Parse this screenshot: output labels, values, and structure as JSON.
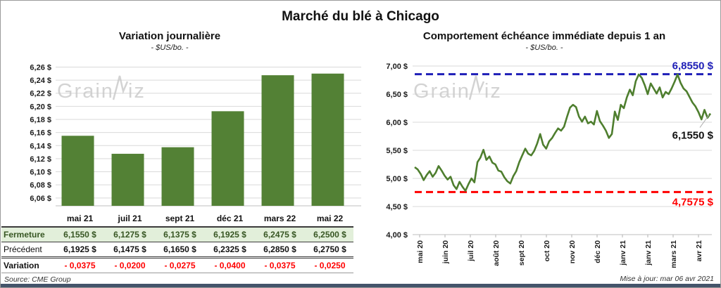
{
  "title": "Marché du blé à Chicago",
  "watermark": {
    "before": "Grain",
    "after": "iz"
  },
  "footer": {
    "source": "Source: CME Group",
    "updated": "Mise à jour: mar 06 avr 2021"
  },
  "table": {
    "columns": [
      "mai 21",
      "juil 21",
      "sept 21",
      "déc 21",
      "mars 22",
      "mai 22"
    ],
    "rows": [
      {
        "style": "fermeture",
        "label": "Fermeture",
        "values": [
          "6,1550 $",
          "6,1275 $",
          "6,1375 $",
          "6,1925 $",
          "6,2475 $",
          "6,2500 $"
        ]
      },
      {
        "style": "precedent",
        "label": "Précédent",
        "values": [
          "6,1925 $",
          "6,1475 $",
          "6,1650 $",
          "6,2325 $",
          "6,2850 $",
          "6,2750 $"
        ]
      },
      {
        "style": "variation",
        "label": "Variation",
        "values": [
          "- 0,0375",
          "- 0,0200",
          "- 0,0275",
          "- 0,0400",
          "- 0,0375",
          "- 0,0250"
        ]
      }
    ]
  },
  "chart_data": [
    {
      "type": "bar",
      "title": "Variation journalière",
      "subtitle": "- $US/bo. -",
      "categories": [
        "mai 21",
        "juil 21",
        "sept 21",
        "déc 21",
        "mars 22",
        "mai 22"
      ],
      "values": [
        6.155,
        6.1275,
        6.1375,
        6.1925,
        6.2475,
        6.25
      ],
      "yticks": [
        6.06,
        6.08,
        6.1,
        6.12,
        6.14,
        6.16,
        6.18,
        6.2,
        6.22,
        6.24,
        6.26
      ],
      "ytick_labels": [
        "6,06 $",
        "6,08 $",
        "6,10 $",
        "6,12 $",
        "6,14 $",
        "6,16 $",
        "6,18 $",
        "6,20 $",
        "6,22 $",
        "6,24 $",
        "6,26 $"
      ],
      "ylim": [
        6.048,
        6.268
      ],
      "bar_color": "#538135",
      "grid_color": "#d9d9d9",
      "legend": "none"
    },
    {
      "type": "line",
      "title": "Comportement échéance immédiate depuis 1 an",
      "subtitle": "- $US/bo. -",
      "x_tick_labels": [
        "mai 20",
        "juin 20",
        "juil 20",
        "août 20",
        "sept 20",
        "oct 20",
        "nov 20",
        "déc 20",
        "janv 21",
        "janv 21",
        "mars 21",
        "avr 21"
      ],
      "yticks": [
        4.0,
        4.5,
        5.0,
        5.5,
        6.0,
        6.5,
        7.0
      ],
      "ytick_labels": [
        "4,00 $",
        "4,50 $",
        "5,00 $",
        "5,50 $",
        "6,00 $",
        "6,50 $",
        "7,00 $"
      ],
      "ylim": [
        4.0,
        7.0
      ],
      "values": [
        5.2,
        5.16,
        5.08,
        4.97,
        5.06,
        5.13,
        5.03,
        5.1,
        5.22,
        5.14,
        5.05,
        4.98,
        5.03,
        4.88,
        4.81,
        4.94,
        4.85,
        4.78,
        4.9,
        5.0,
        4.93,
        5.29,
        5.37,
        5.51,
        5.33,
        5.39,
        5.28,
        5.25,
        5.14,
        5.12,
        5.02,
        4.95,
        4.91,
        5.04,
        5.13,
        5.29,
        5.41,
        5.53,
        5.44,
        5.41,
        5.49,
        5.62,
        5.79,
        5.6,
        5.53,
        5.66,
        5.72,
        5.81,
        5.89,
        5.85,
        5.92,
        6.1,
        6.26,
        6.31,
        6.27,
        6.1,
        6.01,
        6.1,
        5.98,
        6.01,
        5.96,
        6.2,
        6.02,
        5.94,
        5.85,
        5.72,
        5.79,
        6.19,
        6.04,
        6.31,
        6.25,
        6.44,
        6.58,
        6.48,
        6.73,
        6.85,
        6.79,
        6.66,
        6.5,
        6.69,
        6.6,
        6.51,
        6.62,
        6.44,
        6.54,
        6.5,
        6.6,
        6.72,
        6.85,
        6.7,
        6.6,
        6.55,
        6.45,
        6.35,
        6.28,
        6.18,
        6.05,
        6.22,
        6.08,
        6.155
      ],
      "line_color": "#4e7e2e",
      "grid_color": "#d9d9d9",
      "high_line": {
        "value": 6.855,
        "label": "6,8550 $",
        "color": "#1f1fb8"
      },
      "low_line": {
        "value": 4.7575,
        "label": "4,7575 $",
        "color": "#ff0000"
      },
      "last_value_label": "6,1550 $",
      "last_value_color": "#111111",
      "legend": "none"
    }
  ]
}
